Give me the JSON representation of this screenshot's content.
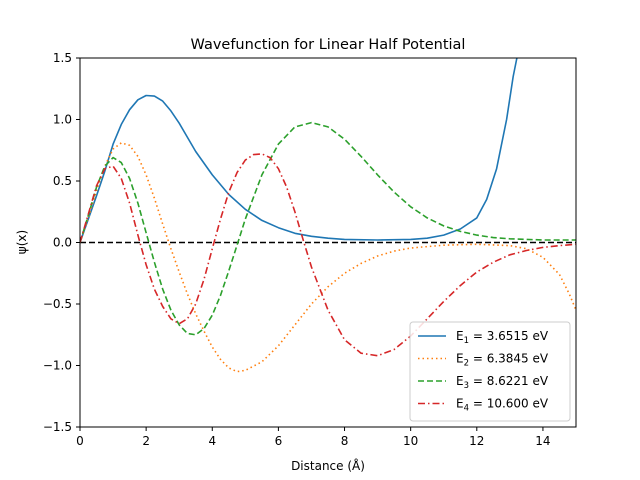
{
  "chart_data": {
    "type": "line",
    "title": "Wavefunction for Linear Half Potential",
    "xlabel": "Distance (Å)",
    "ylabel": "ψ(x)",
    "xlim": [
      0,
      15
    ],
    "ylim": [
      -1.5,
      1.5
    ],
    "xticks": [
      0,
      2,
      4,
      6,
      8,
      10,
      12,
      14
    ],
    "yticks": [
      -1.5,
      -1.0,
      -0.5,
      0.0,
      0.5,
      1.0,
      1.5
    ],
    "xtick_labels": [
      "0",
      "2",
      "4",
      "6",
      "8",
      "10",
      "12",
      "14"
    ],
    "ytick_labels": [
      "−1.5",
      "−1.0",
      "−0.5",
      "0.0",
      "0.5",
      "1.0",
      "1.5"
    ],
    "grid": false,
    "legend_position": "lower-right",
    "zero_line": {
      "y": 0,
      "color": "#000000",
      "style": "dashed"
    },
    "series": [
      {
        "name": "E1 = 3.6515 eV",
        "label_parts": {
          "sym": "E",
          "sub": "1",
          "rest": " = 3.6515 eV"
        },
        "color": "#1f77b4",
        "style": "solid",
        "points": [
          [
            0,
            0
          ],
          [
            0.25,
            0.19
          ],
          [
            0.5,
            0.38
          ],
          [
            0.75,
            0.58
          ],
          [
            1.0,
            0.8
          ],
          [
            1.25,
            0.96
          ],
          [
            1.5,
            1.08
          ],
          [
            1.75,
            1.16
          ],
          [
            2.0,
            1.195
          ],
          [
            2.25,
            1.19
          ],
          [
            2.5,
            1.15
          ],
          [
            2.75,
            1.07
          ],
          [
            3.0,
            0.97
          ],
          [
            3.5,
            0.74
          ],
          [
            4.0,
            0.55
          ],
          [
            4.5,
            0.39
          ],
          [
            5.0,
            0.27
          ],
          [
            5.5,
            0.18
          ],
          [
            6.0,
            0.12
          ],
          [
            6.5,
            0.075
          ],
          [
            7.0,
            0.05
          ],
          [
            7.5,
            0.035
          ],
          [
            8.0,
            0.025
          ],
          [
            9.0,
            0.02
          ],
          [
            10.0,
            0.025
          ],
          [
            10.5,
            0.035
          ],
          [
            11.0,
            0.06
          ],
          [
            11.5,
            0.11
          ],
          [
            12.0,
            0.2
          ],
          [
            12.3,
            0.35
          ],
          [
            12.6,
            0.6
          ],
          [
            12.9,
            1.0
          ],
          [
            13.1,
            1.35
          ],
          [
            13.25,
            1.55
          ]
        ]
      },
      {
        "name": "E2 = 6.3845 eV",
        "label_parts": {
          "sym": "E",
          "sub": "2",
          "rest": " = 6.3845 eV"
        },
        "color": "#ff7f0e",
        "style": "dotted",
        "points": [
          [
            0,
            0
          ],
          [
            0.25,
            0.2
          ],
          [
            0.5,
            0.42
          ],
          [
            0.75,
            0.62
          ],
          [
            1.0,
            0.76
          ],
          [
            1.25,
            0.81
          ],
          [
            1.5,
            0.79
          ],
          [
            1.75,
            0.7
          ],
          [
            2.0,
            0.55
          ],
          [
            2.25,
            0.36
          ],
          [
            2.5,
            0.15
          ],
          [
            2.75,
            -0.05
          ],
          [
            3.0,
            -0.24
          ],
          [
            3.25,
            -0.42
          ],
          [
            3.5,
            -0.58
          ],
          [
            3.75,
            -0.72
          ],
          [
            4.0,
            -0.85
          ],
          [
            4.25,
            -0.95
          ],
          [
            4.5,
            -1.02
          ],
          [
            4.75,
            -1.05
          ],
          [
            5.0,
            -1.04
          ],
          [
            5.5,
            -0.97
          ],
          [
            6.0,
            -0.84
          ],
          [
            6.5,
            -0.67
          ],
          [
            7.0,
            -0.5
          ],
          [
            7.5,
            -0.36
          ],
          [
            8.0,
            -0.25
          ],
          [
            8.5,
            -0.17
          ],
          [
            9.0,
            -0.11
          ],
          [
            9.5,
            -0.07
          ],
          [
            10.0,
            -0.045
          ],
          [
            11.0,
            -0.022
          ],
          [
            12.0,
            -0.015
          ],
          [
            13.0,
            -0.025
          ],
          [
            13.5,
            -0.05
          ],
          [
            14.0,
            -0.12
          ],
          [
            14.5,
            -0.26
          ],
          [
            14.8,
            -0.42
          ],
          [
            15.0,
            -0.55
          ]
        ]
      },
      {
        "name": "E3 = 8.6221 eV",
        "label_parts": {
          "sym": "E",
          "sub": "3",
          "rest": " = 8.6221 eV"
        },
        "color": "#2ca02c",
        "style": "dashed",
        "points": [
          [
            0,
            0
          ],
          [
            0.25,
            0.22
          ],
          [
            0.5,
            0.45
          ],
          [
            0.75,
            0.62
          ],
          [
            1.0,
            0.69
          ],
          [
            1.25,
            0.65
          ],
          [
            1.5,
            0.52
          ],
          [
            1.75,
            0.32
          ],
          [
            2.0,
            0.08
          ],
          [
            2.25,
            -0.16
          ],
          [
            2.5,
            -0.38
          ],
          [
            2.75,
            -0.55
          ],
          [
            3.0,
            -0.67
          ],
          [
            3.25,
            -0.74
          ],
          [
            3.5,
            -0.75
          ],
          [
            3.75,
            -0.7
          ],
          [
            4.0,
            -0.59
          ],
          [
            4.25,
            -0.43
          ],
          [
            4.5,
            -0.23
          ],
          [
            4.75,
            -0.02
          ],
          [
            5.0,
            0.19
          ],
          [
            5.5,
            0.55
          ],
          [
            6.0,
            0.8
          ],
          [
            6.5,
            0.94
          ],
          [
            7.0,
            0.975
          ],
          [
            7.5,
            0.94
          ],
          [
            8.0,
            0.84
          ],
          [
            8.5,
            0.7
          ],
          [
            9.0,
            0.55
          ],
          [
            9.5,
            0.41
          ],
          [
            10.0,
            0.29
          ],
          [
            10.5,
            0.2
          ],
          [
            11.0,
            0.135
          ],
          [
            11.5,
            0.09
          ],
          [
            12.0,
            0.06
          ],
          [
            12.5,
            0.04
          ],
          [
            13.0,
            0.03
          ],
          [
            14.0,
            0.02
          ],
          [
            15.0,
            0.02
          ]
        ]
      },
      {
        "name": "E4 = 10.600 eV",
        "label_parts": {
          "sym": "E",
          "sub": "4",
          "rest": " = 10.600 eV"
        },
        "color": "#d62728",
        "style": "dashdot",
        "points": [
          [
            0,
            0
          ],
          [
            0.25,
            0.23
          ],
          [
            0.5,
            0.46
          ],
          [
            0.75,
            0.6
          ],
          [
            1.0,
            0.62
          ],
          [
            1.25,
            0.52
          ],
          [
            1.5,
            0.32
          ],
          [
            1.75,
            0.06
          ],
          [
            2.0,
            -0.18
          ],
          [
            2.25,
            -0.38
          ],
          [
            2.5,
            -0.52
          ],
          [
            2.75,
            -0.62
          ],
          [
            3.0,
            -0.66
          ],
          [
            3.25,
            -0.62
          ],
          [
            3.5,
            -0.5
          ],
          [
            3.75,
            -0.3
          ],
          [
            4.0,
            -0.05
          ],
          [
            4.25,
            0.19
          ],
          [
            4.5,
            0.41
          ],
          [
            4.75,
            0.57
          ],
          [
            5.0,
            0.67
          ],
          [
            5.25,
            0.715
          ],
          [
            5.5,
            0.72
          ],
          [
            5.75,
            0.69
          ],
          [
            6.0,
            0.6
          ],
          [
            6.25,
            0.45
          ],
          [
            6.5,
            0.25
          ],
          [
            6.75,
            0.02
          ],
          [
            7.0,
            -0.2
          ],
          [
            7.5,
            -0.55
          ],
          [
            8.0,
            -0.79
          ],
          [
            8.5,
            -0.9
          ],
          [
            9.0,
            -0.92
          ],
          [
            9.5,
            -0.87
          ],
          [
            10.0,
            -0.76
          ],
          [
            10.5,
            -0.62
          ],
          [
            11.0,
            -0.48
          ],
          [
            11.5,
            -0.35
          ],
          [
            12.0,
            -0.24
          ],
          [
            12.5,
            -0.16
          ],
          [
            13.0,
            -0.1
          ],
          [
            13.5,
            -0.065
          ],
          [
            14.0,
            -0.04
          ],
          [
            14.5,
            -0.025
          ],
          [
            15.0,
            -0.015
          ]
        ]
      }
    ]
  }
}
